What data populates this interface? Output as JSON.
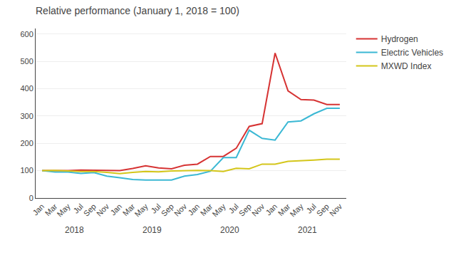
{
  "chart_data": {
    "type": "line",
    "title": "Relative performance (January 1, 2018 = 100)",
    "categories": [
      "Jan",
      "Mar",
      "May",
      "Jul",
      "Sep",
      "Nov",
      "Jan",
      "Mar",
      "May",
      "Jul",
      "Sep",
      "Nov",
      "Jan",
      "Mar",
      "May",
      "Jul",
      "Sep",
      "Nov",
      "Jan",
      "Mar",
      "May",
      "Jul",
      "Sep",
      "Nov"
    ],
    "annotations": [
      "2018",
      "2019",
      "2020",
      "2021"
    ],
    "series": [
      {
        "name": "Hydrogen",
        "color": "#d63333",
        "values": [
          100,
          100,
          100,
          102,
          101,
          101,
          100,
          108,
          118,
          110,
          107,
          120,
          124,
          152,
          152,
          182,
          262,
          272,
          530,
          392,
          360,
          358,
          342,
          342
        ]
      },
      {
        "name": "Electric Vehicles",
        "color": "#3bb8d4",
        "values": [
          100,
          95,
          95,
          90,
          93,
          80,
          74,
          68,
          66,
          66,
          66,
          80,
          86,
          98,
          148,
          148,
          248,
          218,
          212,
          278,
          282,
          308,
          328,
          328
        ]
      },
      {
        "name": "MXWD Index",
        "color": "#d4c61a",
        "values": [
          100,
          101,
          99,
          97,
          97,
          94,
          89,
          94,
          97,
          96,
          99,
          100,
          101,
          100,
          97,
          109,
          107,
          124,
          124,
          134,
          136,
          139,
          142,
          142
        ]
      }
    ],
    "ylim": [
      0,
      620
    ],
    "yticks": [
      0,
      100,
      200,
      300,
      400,
      500,
      600
    ],
    "grid": "y",
    "legend": "right"
  }
}
